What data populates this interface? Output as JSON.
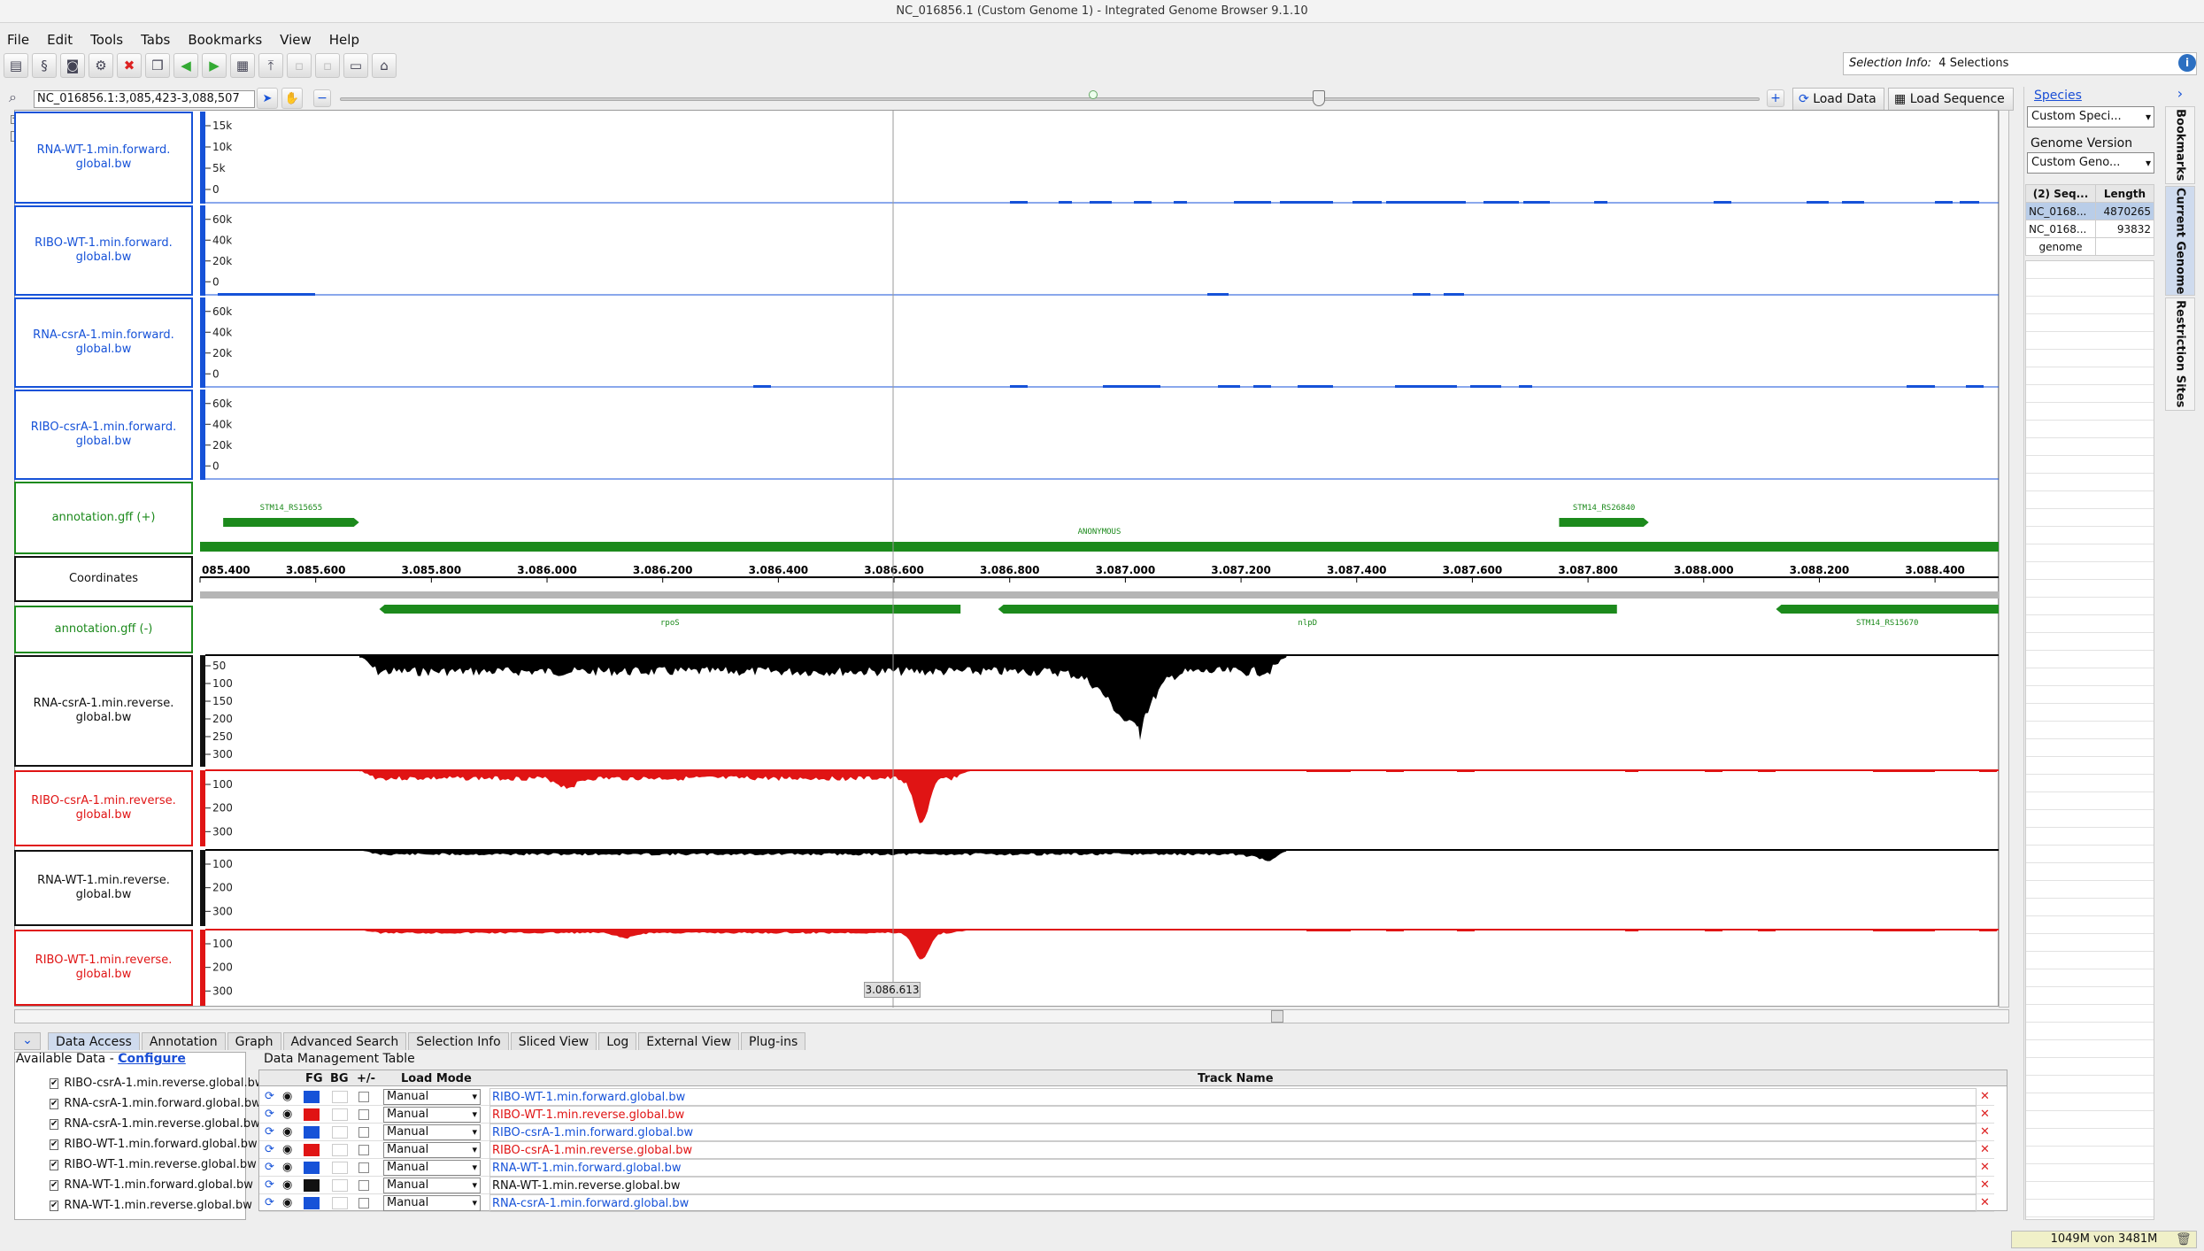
{
  "window": {
    "title": "NC_016856.1  (Custom Genome 1) - Integrated Genome Browser 9.1.10"
  },
  "menu": [
    "File",
    "Edit",
    "Tools",
    "Tabs",
    "Bookmarks",
    "View",
    "Help"
  ],
  "toolbar": {
    "icons": [
      "open-folder-icon",
      "dna-icon",
      "camera-icon",
      "settings-icon",
      "stop-icon",
      "bookmark-icon",
      "back-icon",
      "forward-icon",
      "film-icon",
      "track-icon",
      "blank-icon",
      "blank-icon",
      "comment-icon",
      "home-icon"
    ],
    "selection_label": "Selection Info:",
    "selection_value": "4 Selections"
  },
  "nav": {
    "location": "NC_016856.1:3,085,423-3,088,507",
    "load_data": "Load Data",
    "load_sequence": "Load Sequence",
    "cursor_position": "3.086.613"
  },
  "tracks": [
    {
      "label": "RNA-WT-1.min.forward.\nglobal.bw",
      "color": "#1652d8",
      "ticks": [
        "15k",
        "10k",
        "5k",
        "0"
      ]
    },
    {
      "label": "RIBO-WT-1.min.forward.\nglobal.bw",
      "color": "#1652d8",
      "ticks": [
        "60k",
        "40k",
        "20k",
        "0"
      ]
    },
    {
      "label": "RNA-csrA-1.min.forward.\nglobal.bw",
      "color": "#1652d8",
      "ticks": [
        "60k",
        "40k",
        "20k",
        "0"
      ]
    },
    {
      "label": "RIBO-csrA-1.min.forward.\nglobal.bw",
      "color": "#1652d8",
      "ticks": [
        "60k",
        "40k",
        "20k",
        "0"
      ]
    },
    {
      "label": "annotation.gff (+)",
      "color": "#1c8a1c"
    },
    {
      "label": "Coordinates",
      "color": "#111111"
    },
    {
      "label": "annotation.gff (-)",
      "color": "#1c8a1c"
    },
    {
      "label": "RNA-csrA-1.min.reverse.\nglobal.bw",
      "color": "#111111",
      "ticks": [
        "50",
        "100",
        "150",
        "200",
        "250",
        "300"
      ]
    },
    {
      "label": "RIBO-csrA-1.min.reverse.\nglobal.bw",
      "color": "#e01414",
      "ticks": [
        "100",
        "200",
        "300"
      ]
    },
    {
      "label": "RNA-WT-1.min.reverse.\nglobal.bw",
      "color": "#111111",
      "ticks": [
        "100",
        "200",
        "300"
      ]
    },
    {
      "label": "RIBO-WT-1.min.reverse.\nglobal.bw",
      "color": "#e01414",
      "ticks": [
        "100",
        "200",
        "300"
      ]
    }
  ],
  "genes_plus": [
    {
      "name": "STM14_RS15655",
      "start": 3085440,
      "end": 3085675
    },
    {
      "name": "STM14_RS26840",
      "start": 3087750,
      "end": 3087905
    },
    {
      "name": "ANONYMOUS",
      "start": 3085400,
      "end": 3088510
    }
  ],
  "genes_minus": [
    {
      "name": "rpoS",
      "start": 3085710,
      "end": 3086715
    },
    {
      "name": "nlpD",
      "start": 3086780,
      "end": 3087850
    },
    {
      "name": "STM14_RS15670",
      "start": 3088125,
      "end": 3088510
    }
  ],
  "coordinates": {
    "range": [
      3085400,
      3088510
    ],
    "ticks": [
      {
        "label": "085.400",
        "value": 3085400
      },
      {
        "label": "3.085.600",
        "value": 3085600
      },
      {
        "label": "3.085.800",
        "value": 3085800
      },
      {
        "label": "3.086.000",
        "value": 3086000
      },
      {
        "label": "3.086.200",
        "value": 3086200
      },
      {
        "label": "3.086.400",
        "value": 3086400
      },
      {
        "label": "3.086.600",
        "value": 3086600
      },
      {
        "label": "3.086.800",
        "value": 3086800
      },
      {
        "label": "3.087.000",
        "value": 3087000
      },
      {
        "label": "3.087.200",
        "value": 3087200
      },
      {
        "label": "3.087.400",
        "value": 3087400
      },
      {
        "label": "3.087.600",
        "value": 3087600
      },
      {
        "label": "3.087.800",
        "value": 3087800
      },
      {
        "label": "3.088.000",
        "value": 3088000
      },
      {
        "label": "3.088.200",
        "value": 3088200
      },
      {
        "label": "3.088.400",
        "value": 3088400
      }
    ]
  },
  "right_panel": {
    "species_label": "Species",
    "species_value": "Custom Speci...",
    "genome_version_label": "Genome Version",
    "genome_version_value": "Custom Geno...",
    "table_headers": [
      "(2) Seq...",
      "Length"
    ],
    "rows": [
      [
        "NC_0168...",
        "4870265"
      ],
      [
        "NC_0168...",
        "93832"
      ],
      [
        "genome",
        ""
      ]
    ],
    "side_tabs": [
      "Bookmarks",
      "Current Genome",
      "Restriction Sites"
    ]
  },
  "bottom_tabs": [
    "Data Access",
    "Annotation",
    "Graph",
    "Advanced Search",
    "Selection Info",
    "Sliced View",
    "Log",
    "External View",
    "Plug-ins"
  ],
  "available_data": {
    "title": "Available Data -",
    "configure": "Configure",
    "items": [
      "RIBO-csrA-1.min.reverse.global.bw",
      "RNA-csrA-1.min.forward.global.bw",
      "RNA-csrA-1.min.reverse.global.bw",
      "RIBO-WT-1.min.forward.global.bw",
      "RIBO-WT-1.min.reverse.global.bw",
      "RNA-WT-1.min.forward.global.bw",
      "RNA-WT-1.min.reverse.global.bw"
    ]
  },
  "data_management": {
    "title": "Data Management Table",
    "headers": [
      "FG",
      "BG",
      "+/-",
      "Load Mode",
      "Track Name"
    ],
    "rows": [
      {
        "fg": "#1652d8",
        "mode": "Manual",
        "name": "RIBO-WT-1.min.forward.global.bw",
        "color": "#1652d8"
      },
      {
        "fg": "#e01414",
        "mode": "Manual",
        "name": "RIBO-WT-1.min.reverse.global.bw",
        "color": "#e01414"
      },
      {
        "fg": "#1652d8",
        "mode": "Manual",
        "name": "RIBO-csrA-1.min.forward.global.bw",
        "color": "#1652d8"
      },
      {
        "fg": "#e01414",
        "mode": "Manual",
        "name": "RIBO-csrA-1.min.reverse.global.bw",
        "color": "#e01414"
      },
      {
        "fg": "#1652d8",
        "mode": "Manual",
        "name": "RNA-WT-1.min.forward.global.bw",
        "color": "#1652d8"
      },
      {
        "fg": "#111111",
        "mode": "Manual",
        "name": "RNA-WT-1.min.reverse.global.bw",
        "color": "#111111"
      },
      {
        "fg": "#1652d8",
        "mode": "Manual",
        "name": "RNA-csrA-1.min.forward.global.bw",
        "color": "#1652d8"
      }
    ]
  },
  "status": {
    "memory": "1049M von 3481M"
  }
}
